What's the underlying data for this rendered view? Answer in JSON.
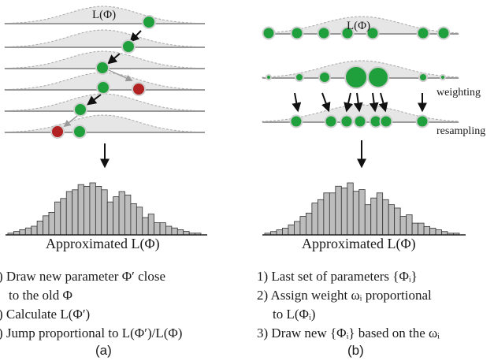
{
  "panel_a": {
    "curve_label": "L(Φ)",
    "caption": "Approximated L(Φ)",
    "steps": [
      ") Draw new parameter Φ′ close",
      "to the old Φ",
      ") Calculate L(Φ′)",
      ") Jump proportional to L(Φ′)/L(Φ)"
    ],
    "label": "(a)"
  },
  "panel_b": {
    "curve_label": "L(Φ)",
    "weighting_label": "weighting",
    "resampling_label": "resampling",
    "caption": "Approximated L(Φ)",
    "steps": [
      "1) Last set of parameters {Φᵢ}",
      "2) Assign weight ωᵢ proportional",
      "to L(Φᵢ)",
      "3) Draw new {Φᵢ} based on the ωᵢ"
    ],
    "label": "(b)"
  },
  "colors": {
    "accepted": "#1fa03c",
    "rejected": "#b22222",
    "curve_fill": "#e6e6e6",
    "bar_fill": "#bdbdbd",
    "line": "#9a9a9a"
  },
  "chart_data": [
    {
      "type": "bar",
      "title": "Approximated L(Φ)",
      "values": [
        1,
        2,
        3,
        4,
        5,
        8,
        11,
        13,
        19,
        21,
        25,
        26,
        29,
        28,
        30,
        28,
        26,
        19,
        22,
        25,
        23,
        18,
        16,
        10,
        12,
        7,
        7,
        5,
        4,
        3,
        2,
        1,
        1
      ]
    },
    {
      "type": "bar",
      "title": "Approximated L(Φ)",
      "values": [
        1,
        2,
        3,
        4,
        6,
        8,
        11,
        13,
        19,
        21,
        25,
        25,
        29,
        28,
        31,
        26,
        27,
        18,
        22,
        25,
        21,
        18,
        16,
        11,
        12,
        7,
        7,
        5,
        4,
        3,
        2,
        1,
        1
      ]
    }
  ]
}
